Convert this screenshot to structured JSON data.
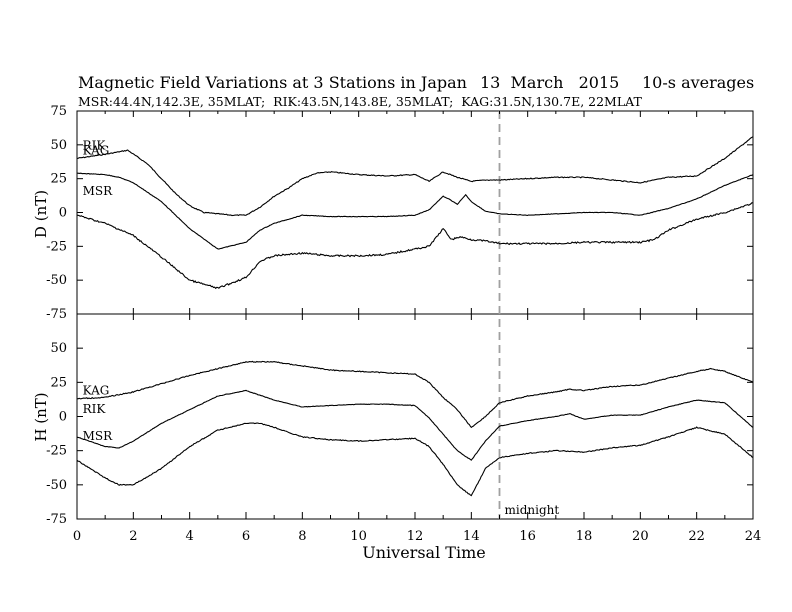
{
  "figure": {
    "title": "Magnetic Field Variations at 3 Stations in Japan",
    "date": "13  March   2015",
    "averaging": "10-s averages",
    "stations_line": "MSR:44.4N,142.3E, 35MLAT;  RIK:43.5N,143.8E, 35MLAT;  KAG:31.5N,130.7E, 22MLAT",
    "xlabel": "Universal Time",
    "x_ticks": [
      "0",
      "2",
      "4",
      "6",
      "8",
      "10",
      "12",
      "14",
      "16",
      "18",
      "20",
      "22",
      "24"
    ],
    "marker_label": "midnight",
    "marker_x": 15
  },
  "colors": {
    "trace": "#000000",
    "midnight_line": "#a0a0a0"
  },
  "chart_data": [
    {
      "type": "line",
      "ylabel": "D (nT)",
      "ylim": [
        -75,
        75
      ],
      "xlim": [
        0,
        24
      ],
      "y_ticks": [
        "75",
        "50",
        "25",
        "0",
        "-25",
        "-50",
        "-75"
      ],
      "series": [
        {
          "name": "KAG",
          "x": [
            0,
            1,
            1.8,
            2.5,
            3,
            3.5,
            4,
            4.5,
            5,
            5.5,
            6,
            6.5,
            7,
            7.5,
            8,
            8.5,
            9,
            10,
            11,
            12,
            12.5,
            13,
            13.5,
            14,
            14.5,
            15,
            16,
            17,
            18,
            19,
            20,
            21,
            22,
            23,
            24
          ],
          "y": [
            40,
            43,
            46,
            36,
            25,
            14,
            5,
            0,
            -1,
            -2,
            -2,
            4,
            12,
            18,
            25,
            29,
            30,
            28,
            27,
            28,
            23,
            30,
            26,
            23,
            24,
            24,
            25,
            26,
            26,
            24,
            22,
            26,
            27,
            40,
            56
          ]
        },
        {
          "name": "RIK",
          "x": [
            0,
            1,
            1.5,
            2,
            3,
            4,
            5,
            6,
            6.5,
            7,
            8,
            9,
            10,
            11,
            12,
            12.5,
            13,
            13.2,
            13.5,
            13.8,
            14,
            14.5,
            15,
            16,
            17,
            18,
            19,
            20,
            21,
            22,
            23,
            24
          ],
          "y": [
            29,
            28,
            26,
            22,
            8,
            -12,
            -27,
            -22,
            -13,
            -8,
            -2,
            -3,
            -3,
            -3,
            -2,
            2,
            12,
            10,
            6,
            13,
            8,
            1,
            -1,
            -2,
            -1,
            0,
            0,
            -2,
            3,
            10,
            20,
            28
          ]
        },
        {
          "name": "MSR",
          "x": [
            0,
            1,
            2,
            3,
            4,
            5,
            6,
            6.5,
            7,
            8,
            9,
            10,
            11,
            12,
            12.5,
            13,
            13.3,
            13.6,
            14,
            14.5,
            15,
            16,
            17,
            18,
            19,
            20,
            20.5,
            21,
            22,
            23,
            24
          ],
          "y": [
            -2,
            -8,
            -17,
            -33,
            -50,
            -56,
            -48,
            -36,
            -32,
            -30,
            -32,
            -32,
            -31,
            -27,
            -25,
            -12,
            -20,
            -18,
            -20,
            -21,
            -23,
            -23,
            -23,
            -22,
            -22,
            -22,
            -20,
            -13,
            -5,
            0,
            7
          ]
        }
      ]
    },
    {
      "type": "line",
      "ylabel": "H (nT)",
      "ylim": [
        -75,
        75
      ],
      "xlim": [
        0,
        24
      ],
      "y_ticks": [
        "75",
        "50",
        "25",
        "0",
        "-25",
        "-50",
        "-75"
      ],
      "series": [
        {
          "name": "KAG",
          "x": [
            0,
            1,
            2,
            3,
            4,
            5,
            6,
            7,
            8,
            9,
            10,
            11,
            12,
            12.5,
            13,
            13.5,
            14,
            14.5,
            15,
            16,
            17,
            17.5,
            18,
            19,
            20,
            21,
            22,
            22.5,
            23,
            24
          ],
          "y": [
            13,
            14,
            18,
            24,
            30,
            35,
            40,
            40,
            37,
            34,
            33,
            32,
            31,
            25,
            14,
            5,
            -8,
            0,
            10,
            15,
            18,
            20,
            19,
            22,
            23,
            28,
            33,
            35,
            33,
            25
          ]
        },
        {
          "name": "RIK",
          "x": [
            0,
            1,
            1.5,
            2,
            3,
            4,
            5,
            6,
            7,
            8,
            9,
            10,
            11,
            12,
            12.5,
            13,
            13.5,
            14,
            14.5,
            15,
            16,
            17,
            17.5,
            18,
            19,
            20,
            21,
            22,
            23,
            24
          ],
          "y": [
            -15,
            -22,
            -23,
            -18,
            -5,
            5,
            15,
            19,
            12,
            7,
            8,
            9,
            9,
            8,
            -1,
            -13,
            -25,
            -32,
            -18,
            -7,
            -3,
            0,
            2,
            -2,
            1,
            1,
            7,
            12,
            10,
            -8
          ]
        },
        {
          "name": "MSR",
          "x": [
            0,
            1,
            1.5,
            2,
            3,
            4,
            5,
            6,
            6.5,
            7,
            8,
            9,
            10,
            11,
            12,
            12.5,
            13,
            13.5,
            14,
            14.5,
            15,
            16,
            17,
            18,
            19,
            20,
            21,
            22,
            23,
            24
          ],
          "y": [
            -32,
            -45,
            -50,
            -50,
            -38,
            -22,
            -10,
            -5,
            -5,
            -8,
            -15,
            -17,
            -18,
            -17,
            -16,
            -22,
            -35,
            -50,
            -58,
            -38,
            -30,
            -27,
            -25,
            -26,
            -23,
            -21,
            -15,
            -8,
            -13,
            -30
          ]
        }
      ]
    }
  ]
}
